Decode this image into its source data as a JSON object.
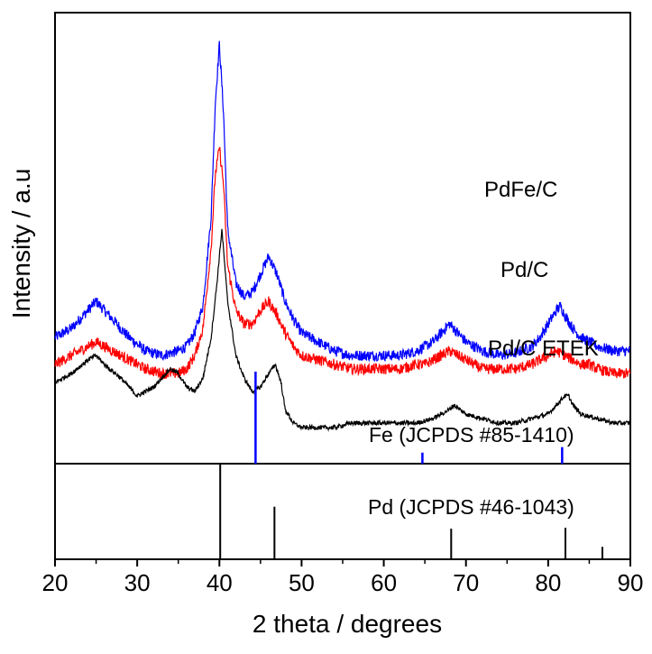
{
  "chart_data": {
    "type": "line",
    "xlabel": "2 theta / degrees",
    "ylabel": "Intensity / a.u",
    "xlim": [
      20,
      90
    ],
    "x_ticks": [
      20,
      30,
      40,
      50,
      60,
      70,
      80,
      90
    ],
    "grid": false,
    "series": [
      {
        "name": "PdFe/C",
        "color": "#0000ff",
        "x": [
          20,
          22,
          24,
          25,
          27,
          29,
          31,
          33,
          35,
          36,
          37,
          38,
          39,
          39.5,
          40,
          40.5,
          41,
          42,
          43,
          44,
          45,
          46,
          47,
          48,
          49,
          50,
          52,
          54,
          56,
          58,
          60,
          62,
          64,
          65,
          66,
          67,
          68,
          69,
          70,
          72,
          74,
          76,
          78,
          79,
          80,
          81,
          81.5,
          82,
          83,
          84,
          85,
          86,
          88,
          90
        ],
        "y": [
          0.28,
          0.3,
          0.34,
          0.36,
          0.32,
          0.28,
          0.25,
          0.24,
          0.25,
          0.26,
          0.29,
          0.35,
          0.55,
          0.8,
          0.93,
          0.78,
          0.52,
          0.4,
          0.37,
          0.38,
          0.42,
          0.46,
          0.42,
          0.36,
          0.32,
          0.29,
          0.27,
          0.25,
          0.24,
          0.24,
          0.24,
          0.24,
          0.25,
          0.26,
          0.27,
          0.29,
          0.31,
          0.29,
          0.27,
          0.25,
          0.24,
          0.245,
          0.26,
          0.28,
          0.31,
          0.34,
          0.35,
          0.33,
          0.3,
          0.28,
          0.27,
          0.26,
          0.25,
          0.25
        ]
      },
      {
        "name": "Pd/C",
        "color": "#ff0000",
        "x": [
          20,
          22,
          24,
          25,
          27,
          29,
          31,
          33,
          35,
          36,
          37,
          38,
          39,
          39.5,
          40,
          40.5,
          41,
          42,
          43,
          44,
          45,
          46,
          47,
          48,
          49,
          50,
          52,
          54,
          56,
          58,
          60,
          62,
          64,
          65,
          66,
          67,
          68,
          69,
          70,
          72,
          74,
          76,
          78,
          79,
          80,
          81,
          82,
          83,
          84,
          85,
          86,
          88,
          90
        ],
        "y": [
          0.22,
          0.24,
          0.26,
          0.27,
          0.25,
          0.23,
          0.21,
          0.2,
          0.2,
          0.21,
          0.24,
          0.3,
          0.48,
          0.64,
          0.7,
          0.62,
          0.44,
          0.34,
          0.31,
          0.31,
          0.34,
          0.36,
          0.33,
          0.29,
          0.26,
          0.24,
          0.23,
          0.22,
          0.21,
          0.21,
          0.21,
          0.21,
          0.22,
          0.22,
          0.23,
          0.24,
          0.25,
          0.24,
          0.23,
          0.21,
          0.21,
          0.21,
          0.22,
          0.23,
          0.24,
          0.25,
          0.24,
          0.23,
          0.22,
          0.22,
          0.21,
          0.2,
          0.2
        ]
      },
      {
        "name": "Pd/C ETEK",
        "color": "#000000",
        "x": [
          20,
          22,
          24,
          25,
          26,
          28,
          30,
          32,
          33,
          34,
          35,
          36,
          37,
          38,
          39,
          39.7,
          40.3,
          41,
          42,
          43,
          44,
          45,
          46,
          46.8,
          47.5,
          48,
          49,
          50,
          52,
          54,
          56,
          58,
          60,
          62,
          64,
          66,
          68,
          68.5,
          70,
          72,
          74,
          76,
          78,
          80,
          81,
          82,
          82.5,
          83,
          84,
          86,
          88,
          90
        ],
        "y": [
          0.18,
          0.2,
          0.23,
          0.24,
          0.22,
          0.19,
          0.15,
          0.17,
          0.19,
          0.21,
          0.2,
          0.17,
          0.16,
          0.19,
          0.28,
          0.4,
          0.52,
          0.36,
          0.24,
          0.19,
          0.16,
          0.17,
          0.2,
          0.22,
          0.18,
          0.12,
          0.09,
          0.08,
          0.08,
          0.08,
          0.09,
          0.09,
          0.09,
          0.09,
          0.09,
          0.1,
          0.12,
          0.13,
          0.11,
          0.1,
          0.09,
          0.09,
          0.1,
          0.11,
          0.13,
          0.15,
          0.15,
          0.13,
          0.11,
          0.1,
          0.09,
          0.09
        ]
      }
    ],
    "series_labels": [
      {
        "text": "PdFe/C",
        "color": "#000000"
      },
      {
        "text": "Pd/C",
        "color": "#000000"
      },
      {
        "text": "Pd/C ETEK",
        "color": "#000000"
      }
    ],
    "reference_patterns": [
      {
        "name": "Fe (JCPDS #85-1410)",
        "color": "#0000ff",
        "peaks": [
          {
            "x": 44.4,
            "intensity": 100
          },
          {
            "x": 64.7,
            "intensity": 12
          },
          {
            "x": 81.7,
            "intensity": 18
          }
        ]
      },
      {
        "name": "Pd (JCPDS #46-1043)",
        "color": "#000000",
        "peaks": [
          {
            "x": 40.1,
            "intensity": 100
          },
          {
            "x": 46.7,
            "intensity": 55
          },
          {
            "x": 68.2,
            "intensity": 32
          },
          {
            "x": 82.1,
            "intensity": 33
          },
          {
            "x": 86.6,
            "intensity": 13
          }
        ]
      }
    ]
  }
}
